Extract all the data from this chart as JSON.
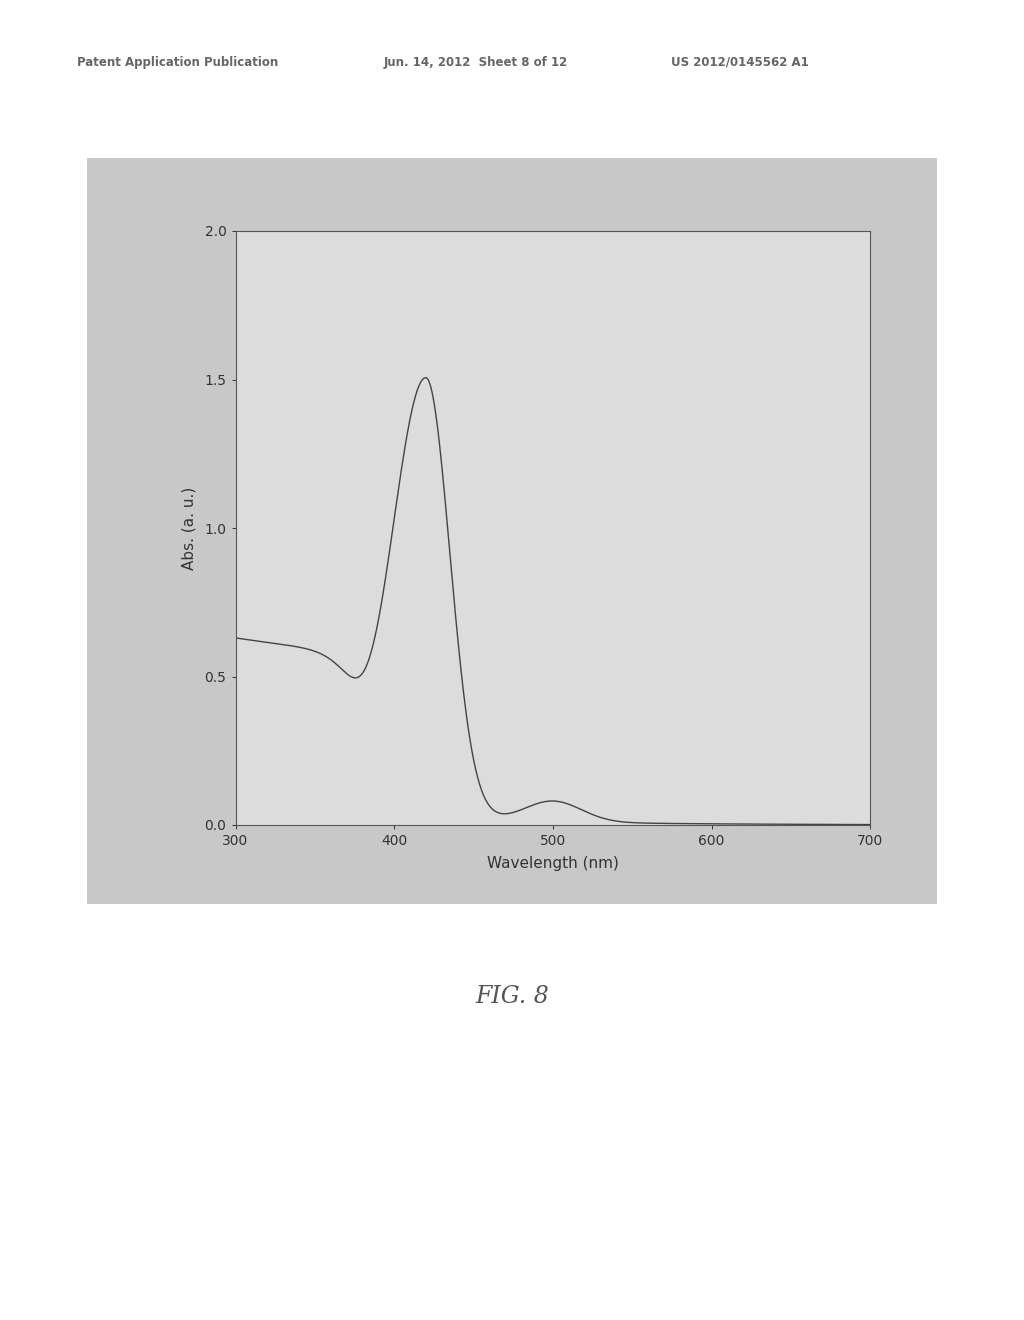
{
  "header_left": "Patent Application Publication",
  "header_mid": "Jun. 14, 2012  Sheet 8 of 12",
  "header_right": "US 2012/0145562 A1",
  "fig_label": "FIG. 8",
  "xlabel": "Wavelength (nm)",
  "ylabel": "Abs. (a. u.)",
  "xlim": [
    300,
    700
  ],
  "ylim": [
    0,
    2
  ],
  "xticks": [
    300,
    400,
    500,
    600,
    700
  ],
  "yticks": [
    0,
    0.5,
    1,
    1.5,
    2
  ],
  "page_bg": "#ffffff",
  "plot_bg": "#dcdcdc",
  "panel_bg": "#c8c8c8",
  "line_color": "#444444",
  "line_width": 1.0,
  "header_color": "#666666",
  "fig_label_color": "#555555"
}
